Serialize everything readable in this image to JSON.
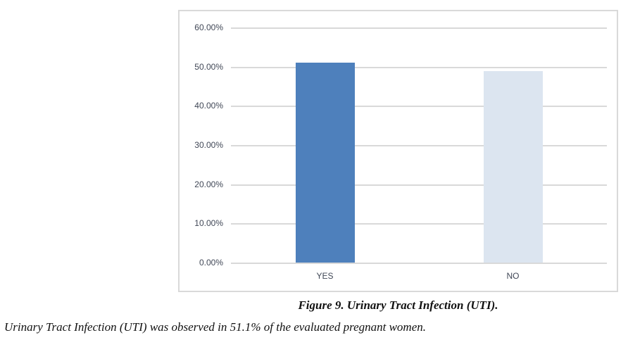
{
  "figure": {
    "caption": "Figure 9. Urinary Tract Infection (UTI).",
    "note": "Urinary Tract Infection (UTI) was observed in 51.1% of the evaluated pregnant women."
  },
  "chart_data": {
    "type": "bar",
    "title": "",
    "xlabel": "",
    "ylabel": "",
    "categories": [
      "YES",
      "NO"
    ],
    "values": [
      51.1,
      48.9
    ],
    "value_unit": "%",
    "ylim": [
      0,
      60
    ],
    "ytick_labels": [
      "60.00%",
      "50.00%",
      "40.00%",
      "30.00%",
      "20.00%",
      "10.00%",
      "0.00%"
    ],
    "grid": true,
    "legend": false,
    "bar_colors": [
      "#4e80bc",
      "#dce5f0"
    ],
    "colors": {
      "gridline": "#d9d9d9",
      "frame_border": "#d9d9d9",
      "axis_text": "#404756"
    }
  }
}
